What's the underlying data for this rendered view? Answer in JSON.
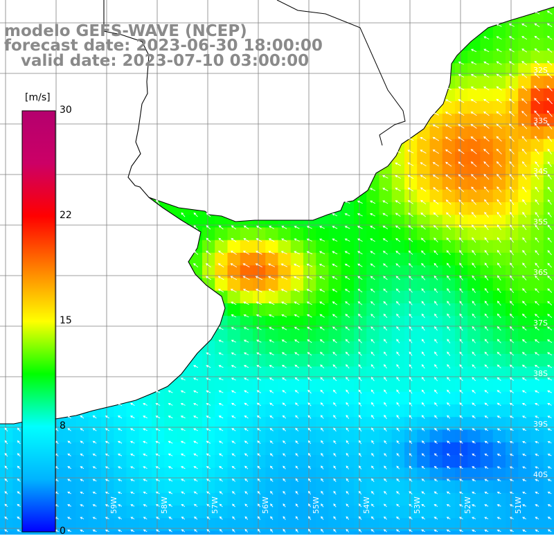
{
  "title": {
    "line1": "modelo GEFS-WAVE (NCEP)",
    "line2": "forecast date: 2023-06-30 18:00:00",
    "line3": "   valid date: 2023-07-10 03:00:00"
  },
  "colorbar": {
    "unit": "[m/s]",
    "ticks": [
      "30",
      "22",
      "15",
      "8",
      "0"
    ],
    "colors": [
      "#0000ff",
      "#00b4ff",
      "#00ffff",
      "#00ff00",
      "#ffff00",
      "#ff8000",
      "#ff0000",
      "#cc0066",
      "#b4006e"
    ]
  },
  "axis_labels": {
    "lat": [
      "32S",
      "33S",
      "34S",
      "35S",
      "36S",
      "37S",
      "38S",
      "39S",
      "40S"
    ],
    "lon": [
      "59W",
      "58W",
      "57W",
      "56W",
      "55W",
      "54W",
      "53W",
      "52W",
      "51W"
    ]
  },
  "map_colors": {
    "land": "#ffffff",
    "grid": "#7f7f7f",
    "coast": "#000000",
    "arrows": "#ffffff"
  },
  "chart_data": {
    "type": "heatmap",
    "field": "wind speed",
    "unit": "m/s",
    "lat_range": [
      -41,
      -31
    ],
    "lon_range": [
      -61,
      -50
    ],
    "color_range": [
      0,
      30
    ],
    "grid": true
  }
}
